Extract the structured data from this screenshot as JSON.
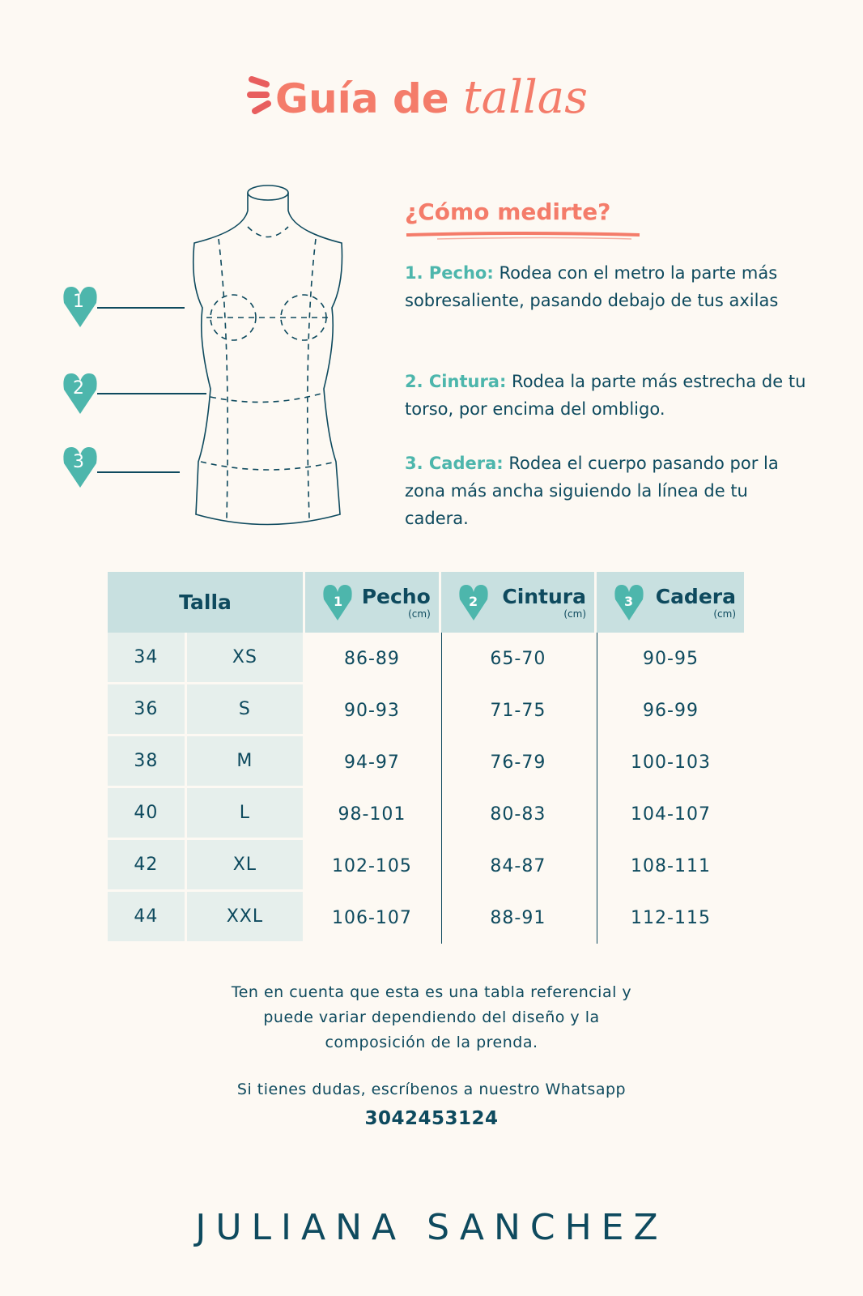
{
  "header": {
    "title_bold": "Guía de",
    "title_italic": "tallas"
  },
  "colors": {
    "coral": "#f47c6a",
    "navy": "#0e4a5e",
    "teal": "#4db6ac",
    "header_bg": "#c8e0e0",
    "background": "#fdf9f3"
  },
  "guide": {
    "heading": "¿Cómo medirte?",
    "steps": [
      {
        "number": "1",
        "label": "1. Pecho:",
        "text": " Rodea con el metro la parte más sobresaliente, pasando debajo de tus axilas"
      },
      {
        "number": "2",
        "label": "2. Cintura:",
        "text": " Rodea la parte más estrecha de tu torso, por encima del ombligo."
      },
      {
        "number": "3",
        "label": "3. Cadera:",
        "text": " Rodea el cuerpo pasando por la zona más ancha siguiendo la línea de tu cadera."
      }
    ]
  },
  "table": {
    "headers": {
      "talla": "Talla",
      "pecho": "Pecho",
      "cintura": "Cintura",
      "cadera": "Cadera",
      "unit": "(cm)"
    },
    "rows": [
      {
        "num": "34",
        "size": "XS",
        "pecho": "86-89",
        "cintura": "65-70",
        "cadera": "90-95"
      },
      {
        "num": "36",
        "size": "S",
        "pecho": "90-93",
        "cintura": "71-75",
        "cadera": "96-99"
      },
      {
        "num": "38",
        "size": "M",
        "pecho": "94-97",
        "cintura": "76-79",
        "cadera": "100-103"
      },
      {
        "num": "40",
        "size": "L",
        "pecho": "98-101",
        "cintura": "80-83",
        "cadera": "104-107"
      },
      {
        "num": "42",
        "size": "XL",
        "pecho": "102-105",
        "cintura": "84-87",
        "cadera": "108-111"
      },
      {
        "num": "44",
        "size": "XXL",
        "pecho": "106-107",
        "cintura": "88-91",
        "cadera": "112-115"
      }
    ]
  },
  "footer": {
    "note_lines": [
      "Ten en cuenta que esta es una tabla referencial y",
      "puede variar dependiendo del diseño y la",
      "composición de la prenda."
    ],
    "contact": "Si tienes dudas, escríbenos a nuestro Whatsapp",
    "phone": "3042453124",
    "brand": "JULIANA SANCHEZ"
  }
}
